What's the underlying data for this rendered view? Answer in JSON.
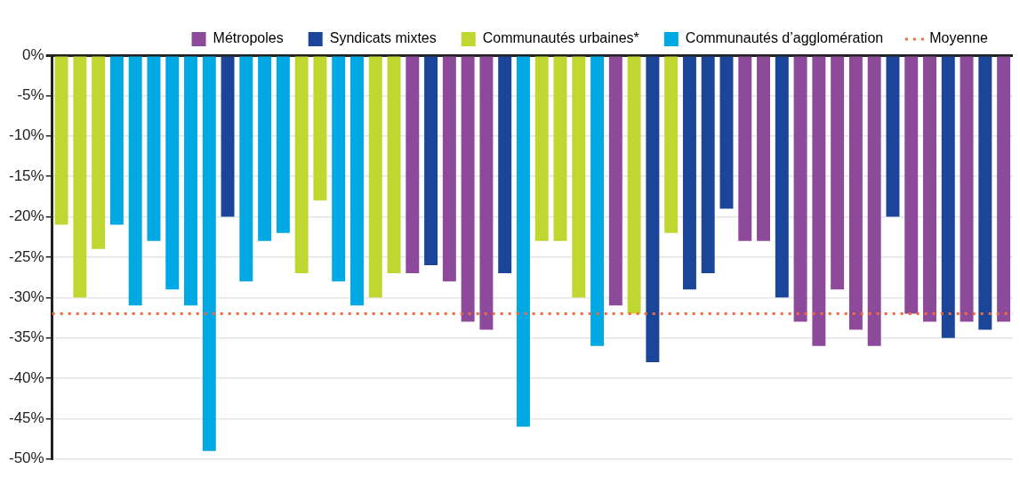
{
  "chart_data": {
    "type": "bar",
    "categories": [
      null,
      null,
      null,
      null,
      null,
      null,
      null,
      null,
      null,
      null,
      null,
      null,
      null,
      null,
      null,
      null,
      null,
      null,
      null,
      null,
      null,
      null,
      null,
      null,
      null,
      null,
      null,
      null,
      null,
      null,
      null,
      null,
      null,
      null,
      null,
      null,
      null,
      null,
      null,
      null,
      null,
      null,
      null,
      null,
      null,
      null,
      null,
      null,
      null,
      null,
      null,
      null
    ],
    "series": [
      {
        "name": "Métropoles",
        "color": "#8e4a9a",
        "values": [
          null,
          null,
          null,
          null,
          null,
          null,
          null,
          null,
          null,
          null,
          null,
          null,
          null,
          null,
          null,
          null,
          null,
          null,
          null,
          -27,
          null,
          -28,
          -33,
          -34,
          null,
          null,
          null,
          null,
          null,
          null,
          -31,
          null,
          null,
          null,
          null,
          null,
          null,
          -23,
          -23,
          null,
          -33,
          -36,
          -29,
          -34,
          -36,
          null,
          -32,
          -33,
          null,
          -33,
          null,
          -33
        ]
      },
      {
        "name": "Syndicats mixtes",
        "color": "#1a4599",
        "values": [
          null,
          null,
          null,
          null,
          null,
          null,
          null,
          null,
          null,
          -20,
          null,
          null,
          null,
          null,
          null,
          null,
          null,
          null,
          null,
          null,
          -26,
          null,
          null,
          null,
          -27,
          null,
          null,
          null,
          null,
          null,
          null,
          null,
          -38,
          null,
          -29,
          -27,
          -19,
          null,
          null,
          -30,
          null,
          null,
          null,
          null,
          null,
          -20,
          null,
          null,
          -35,
          null,
          -34,
          null
        ]
      },
      {
        "name": "Communautés urbaines*",
        "color": "#bfd730",
        "values": [
          -21,
          -30,
          -24,
          null,
          null,
          null,
          null,
          null,
          null,
          null,
          null,
          null,
          null,
          -27,
          -18,
          null,
          null,
          -30,
          -27,
          null,
          null,
          null,
          null,
          null,
          null,
          null,
          -23,
          -23,
          -30,
          null,
          null,
          -32,
          null,
          -22,
          null,
          null,
          null,
          null,
          null,
          null,
          null,
          null,
          null,
          null,
          null,
          null,
          null,
          null,
          null,
          null,
          null,
          null
        ]
      },
      {
        "name": "Communautés d’agglomération",
        "color": "#00a9e3",
        "values": [
          null,
          null,
          null,
          -21,
          -31,
          -23,
          -29,
          -31,
          -49,
          null,
          -28,
          -23,
          -22,
          null,
          null,
          -28,
          -31,
          null,
          null,
          null,
          null,
          null,
          null,
          null,
          null,
          -46,
          null,
          null,
          null,
          -36,
          null,
          null,
          null,
          null,
          null,
          null,
          null,
          null,
          null,
          null,
          null,
          null,
          null,
          null,
          null,
          null,
          null,
          null,
          null,
          null,
          null,
          null
        ]
      }
    ],
    "ylim": [
      -50,
      0
    ],
    "yticks": [
      {
        "value": 0,
        "label": "0%"
      },
      {
        "value": -5,
        "label": "-5%"
      },
      {
        "value": -10,
        "label": "-10%"
      },
      {
        "value": -15,
        "label": "-15%"
      },
      {
        "value": -20,
        "label": "-20%"
      },
      {
        "value": -25,
        "label": "-25%"
      },
      {
        "value": -30,
        "label": "-30%"
      },
      {
        "value": -35,
        "label": "-35%"
      },
      {
        "value": -40,
        "label": "-40%"
      },
      {
        "value": -45,
        "label": "-45%"
      },
      {
        "value": -50,
        "label": "-50%"
      }
    ],
    "ref_lines": [
      {
        "axis": "y",
        "value": -32,
        "label": "Moyenne",
        "color": "#f26a3d",
        "line_style": "dotted"
      }
    ],
    "grid": "y",
    "legend": "top",
    "tick_labels": "y"
  }
}
